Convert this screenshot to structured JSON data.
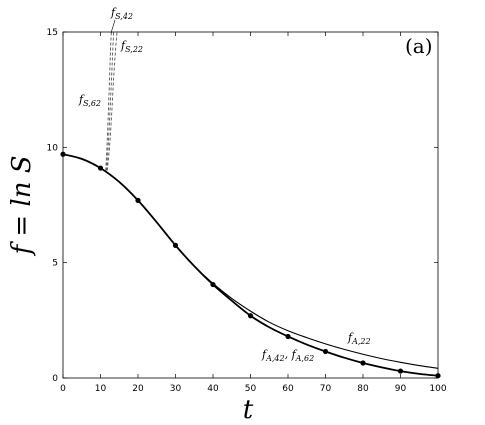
{
  "chart_data": {
    "type": "line",
    "panel_label": "(a)",
    "xlabel": "t",
    "ylabel": "f = ln S",
    "xlim": [
      0,
      100
    ],
    "ylim": [
      0,
      15
    ],
    "x_ticks": [
      0,
      10,
      20,
      30,
      40,
      50,
      60,
      70,
      80,
      90,
      100
    ],
    "y_ticks": [
      0,
      5,
      10,
      15
    ],
    "grid": false,
    "legend": "none",
    "points": {
      "x": [
        0,
        10,
        20,
        30,
        40,
        50,
        60,
        70,
        80,
        90,
        100
      ],
      "y": [
        9.7,
        9.1,
        7.7,
        5.75,
        4.05,
        2.7,
        1.8,
        1.15,
        0.65,
        0.3,
        0.1
      ]
    },
    "series": [
      {
        "name": "f_{A,22}",
        "style": "solid-thin",
        "x": [
          0,
          5,
          10,
          15,
          20,
          25,
          30,
          35,
          40,
          45,
          50,
          55,
          60,
          65,
          70,
          75,
          80,
          85,
          90,
          95,
          100
        ],
        "y": [
          9.7,
          9.5,
          9.1,
          8.5,
          7.7,
          6.75,
          5.75,
          4.85,
          4.1,
          3.45,
          2.9,
          2.42,
          2.05,
          1.75,
          1.48,
          1.24,
          1.03,
          0.84,
          0.68,
          0.54,
          0.42
        ]
      },
      {
        "name": "f_{A,42}, f_{A,62}",
        "style": "solid-thick",
        "x": [
          0,
          5,
          10,
          15,
          20,
          25,
          30,
          35,
          40,
          45,
          50,
          55,
          60,
          65,
          70,
          75,
          80,
          85,
          90,
          95,
          100
        ],
        "y": [
          9.7,
          9.5,
          9.1,
          8.5,
          7.7,
          6.75,
          5.75,
          4.85,
          4.05,
          3.35,
          2.7,
          2.2,
          1.8,
          1.45,
          1.15,
          0.88,
          0.65,
          0.46,
          0.3,
          0.18,
          0.1
        ]
      },
      {
        "name": "f_{S,22}",
        "style": "dashed",
        "x": [
          11.8,
          12.4,
          13.0,
          13.5,
          14.0,
          14.4
        ],
        "y": [
          9.0,
          10.0,
          11.5,
          13.0,
          14.2,
          15.0
        ]
      },
      {
        "name": "f_{S,42}",
        "style": "dashed",
        "x": [
          11.6,
          12.1,
          12.6,
          13.0,
          13.3,
          13.5
        ],
        "y": [
          9.0,
          10.2,
          11.8,
          13.2,
          14.3,
          15.0
        ]
      },
      {
        "name": "f_{S,62}",
        "style": "dashed",
        "x": [
          11.4,
          11.8,
          12.2,
          12.5,
          12.7,
          12.9
        ],
        "y": [
          9.0,
          10.3,
          12.0,
          13.4,
          14.4,
          15.0
        ]
      }
    ],
    "annotations": [
      {
        "base": "f",
        "sub": "S,42"
      },
      {
        "base": "f",
        "sub": "S,22"
      },
      {
        "base": "f",
        "sub": "S,62"
      },
      {
        "base": "f",
        "sub": "A,22"
      },
      {
        "base": "f",
        "sub": "A,42",
        "base2": "f",
        "sub2": "A,62"
      }
    ]
  }
}
